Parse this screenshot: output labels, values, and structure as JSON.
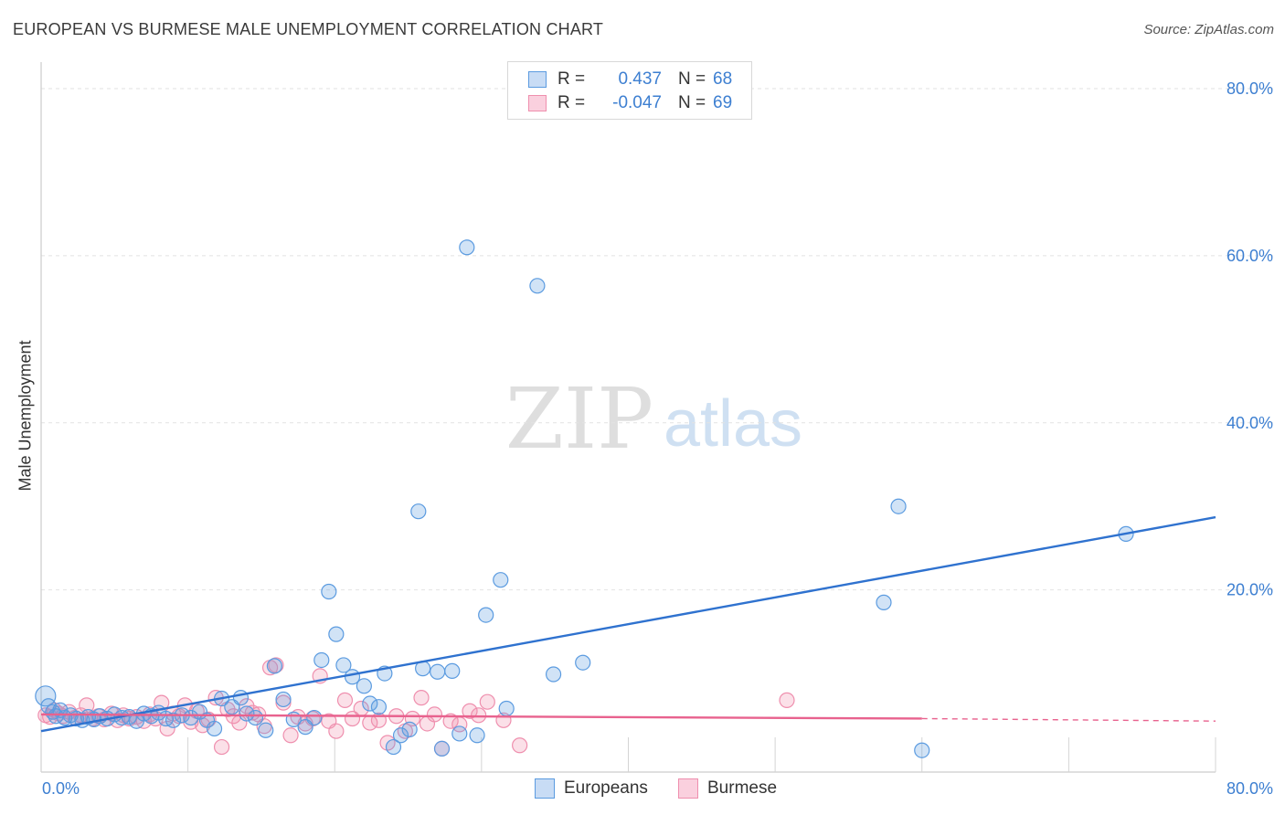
{
  "title": "EUROPEAN VS BURMESE MALE UNEMPLOYMENT CORRELATION CHART",
  "source": "Source: ZipAtlas.com",
  "watermark": {
    "zip": "ZIP",
    "atlas": "atlas"
  },
  "legend": {
    "rows": [
      {
        "r_label": "R =",
        "r_value": "0.437",
        "n_label": "N =",
        "n_value": "68"
      },
      {
        "r_label": "R =",
        "r_value": "-0.047",
        "n_label": "N =",
        "n_value": "69"
      }
    ]
  },
  "bottom_legend": {
    "europeans": "Europeans",
    "burmese": "Burmese"
  },
  "chart_data": {
    "type": "scatter",
    "title": "EUROPEAN VS BURMESE MALE UNEMPLOYMENT CORRELATION CHART",
    "xlabel": "",
    "ylabel": "Male Unemployment",
    "xlim": [
      0,
      80
    ],
    "ylim": [
      0,
      80
    ],
    "x_tick_labels": [
      "0.0%",
      "80.0%"
    ],
    "y_tick_labels": [
      "20.0%",
      "40.0%",
      "60.0%",
      "80.0%"
    ],
    "y_ticks": [
      20,
      40,
      60,
      80
    ],
    "grid": true,
    "legend_placement": "top-center",
    "colors": {
      "europeans": "#5b9be0",
      "europeans_line": "#2f72cf",
      "burmese": "#ef8fae",
      "burmese_line": "#e8628e",
      "tick_label": "#3d7fd1"
    },
    "series": [
      {
        "name": "Europeans",
        "trend": {
          "x": [
            0,
            80
          ],
          "y": [
            3.1,
            28.7
          ]
        },
        "points": [
          [
            0.3,
            7.3
          ],
          [
            0.5,
            6.1
          ],
          [
            0.8,
            5.4
          ],
          [
            1.0,
            4.9
          ],
          [
            1.3,
            5.6
          ],
          [
            1.6,
            4.7
          ],
          [
            2.0,
            5.0
          ],
          [
            2.4,
            4.6
          ],
          [
            2.8,
            4.4
          ],
          [
            3.2,
            4.8
          ],
          [
            3.6,
            4.5
          ],
          [
            4.0,
            4.9
          ],
          [
            4.5,
            4.6
          ],
          [
            5.0,
            5.1
          ],
          [
            5.5,
            4.7
          ],
          [
            6.0,
            4.8
          ],
          [
            6.5,
            4.3
          ],
          [
            7.0,
            5.2
          ],
          [
            7.5,
            4.9
          ],
          [
            8.0,
            5.3
          ],
          [
            8.5,
            4.6
          ],
          [
            9.0,
            4.4
          ],
          [
            9.6,
            5.0
          ],
          [
            10.2,
            4.7
          ],
          [
            10.8,
            5.4
          ],
          [
            11.3,
            4.4
          ],
          [
            11.8,
            3.4
          ],
          [
            12.3,
            7.0
          ],
          [
            13.0,
            6.0
          ],
          [
            13.6,
            7.1
          ],
          [
            14.0,
            5.2
          ],
          [
            14.6,
            4.7
          ],
          [
            15.3,
            3.2
          ],
          [
            15.9,
            10.9
          ],
          [
            16.5,
            6.9
          ],
          [
            17.2,
            4.5
          ],
          [
            18.0,
            3.6
          ],
          [
            18.6,
            4.7
          ],
          [
            19.1,
            11.6
          ],
          [
            19.6,
            19.8
          ],
          [
            20.1,
            14.7
          ],
          [
            20.6,
            11.0
          ],
          [
            21.2,
            9.6
          ],
          [
            22.0,
            8.5
          ],
          [
            22.4,
            6.4
          ],
          [
            23.0,
            6.0
          ],
          [
            23.4,
            10.0
          ],
          [
            24.0,
            1.2
          ],
          [
            24.5,
            2.6
          ],
          [
            25.1,
            3.3
          ],
          [
            25.7,
            29.4
          ],
          [
            26.0,
            10.6
          ],
          [
            27.0,
            10.2
          ],
          [
            27.3,
            1.0
          ],
          [
            28.0,
            10.3
          ],
          [
            28.5,
            2.8
          ],
          [
            29.0,
            61.0
          ],
          [
            29.7,
            2.6
          ],
          [
            30.3,
            17.0
          ],
          [
            31.3,
            21.2
          ],
          [
            31.7,
            5.8
          ],
          [
            33.8,
            56.4
          ],
          [
            34.9,
            9.9
          ],
          [
            36.9,
            11.3
          ],
          [
            57.4,
            18.5
          ],
          [
            58.4,
            30.0
          ],
          [
            60.0,
            0.8
          ],
          [
            73.9,
            26.7
          ]
        ]
      },
      {
        "name": "Burmese",
        "trend": {
          "x": [
            0,
            60
          ],
          "y": [
            5.1,
            4.6
          ],
          "dashed_to": [
            80,
            4.3
          ]
        },
        "points": [
          [
            0.3,
            5.0
          ],
          [
            0.6,
            4.8
          ],
          [
            0.9,
            5.6
          ],
          [
            1.2,
            5.2
          ],
          [
            1.5,
            4.9
          ],
          [
            1.9,
            5.4
          ],
          [
            2.3,
            4.7
          ],
          [
            2.7,
            5.0
          ],
          [
            3.1,
            6.2
          ],
          [
            3.5,
            4.6
          ],
          [
            3.9,
            4.9
          ],
          [
            4.3,
            4.5
          ],
          [
            4.8,
            5.2
          ],
          [
            5.2,
            4.4
          ],
          [
            5.6,
            5.0
          ],
          [
            6.0,
            4.6
          ],
          [
            6.5,
            4.8
          ],
          [
            7.0,
            4.3
          ],
          [
            7.4,
            5.1
          ],
          [
            7.8,
            4.6
          ],
          [
            8.2,
            6.5
          ],
          [
            8.6,
            3.4
          ],
          [
            9.0,
            5.2
          ],
          [
            9.4,
            4.9
          ],
          [
            9.8,
            6.2
          ],
          [
            10.2,
            4.2
          ],
          [
            10.6,
            5.5
          ],
          [
            11.0,
            3.8
          ],
          [
            11.4,
            4.5
          ],
          [
            11.9,
            7.1
          ],
          [
            12.3,
            1.2
          ],
          [
            12.7,
            5.7
          ],
          [
            13.1,
            4.9
          ],
          [
            13.5,
            4.1
          ],
          [
            14.0,
            6.1
          ],
          [
            14.4,
            5.3
          ],
          [
            14.8,
            5.1
          ],
          [
            15.2,
            3.7
          ],
          [
            15.6,
            10.7
          ],
          [
            16.0,
            11.0
          ],
          [
            16.5,
            6.5
          ],
          [
            17.0,
            2.6
          ],
          [
            17.5,
            4.8
          ],
          [
            18.0,
            4.0
          ],
          [
            18.5,
            4.6
          ],
          [
            19.0,
            9.7
          ],
          [
            19.6,
            4.3
          ],
          [
            20.1,
            3.1
          ],
          [
            20.7,
            6.8
          ],
          [
            21.2,
            4.6
          ],
          [
            21.8,
            5.8
          ],
          [
            22.4,
            4.1
          ],
          [
            23.0,
            4.4
          ],
          [
            23.6,
            1.7
          ],
          [
            24.2,
            4.9
          ],
          [
            24.8,
            3.1
          ],
          [
            25.3,
            4.6
          ],
          [
            25.9,
            7.1
          ],
          [
            26.3,
            4.0
          ],
          [
            26.8,
            5.1
          ],
          [
            27.3,
            1.0
          ],
          [
            27.9,
            4.3
          ],
          [
            28.5,
            3.9
          ],
          [
            29.2,
            5.5
          ],
          [
            29.8,
            5.0
          ],
          [
            30.4,
            6.6
          ],
          [
            31.5,
            4.4
          ],
          [
            32.6,
            1.4
          ],
          [
            50.8,
            6.8
          ]
        ]
      }
    ]
  }
}
